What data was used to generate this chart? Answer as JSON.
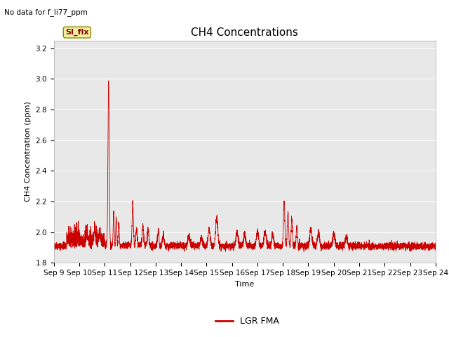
{
  "title": "CH4 Concentrations",
  "ylabel": "CH4 Concentration (ppm)",
  "xlabel": "Time",
  "ylim": [
    1.8,
    3.25
  ],
  "line_color": "#cc0000",
  "legend_label": "LGR FMA",
  "no_data_text": "No data for f_li77_ppm",
  "si_flx_label": "SI_flx",
  "x_tick_labels": [
    "Sep 9",
    "Sep 10",
    "Sep 11",
    "Sep 12",
    "Sep 13",
    "Sep 14",
    "Sep 15",
    "Sep 16",
    "Sep 17",
    "Sep 18",
    "Sep 19",
    "Sep 20",
    "Sep 21",
    "Sep 22",
    "Sep 23",
    "Sep 24"
  ],
  "background_color": "#e8e8e8",
  "figure_color": "#ffffff",
  "title_fontsize": 11,
  "axis_fontsize": 8,
  "tick_fontsize": 7.5,
  "y_ticks": [
    1.8,
    2.0,
    2.2,
    2.4,
    2.6,
    2.8,
    3.0,
    3.2
  ]
}
